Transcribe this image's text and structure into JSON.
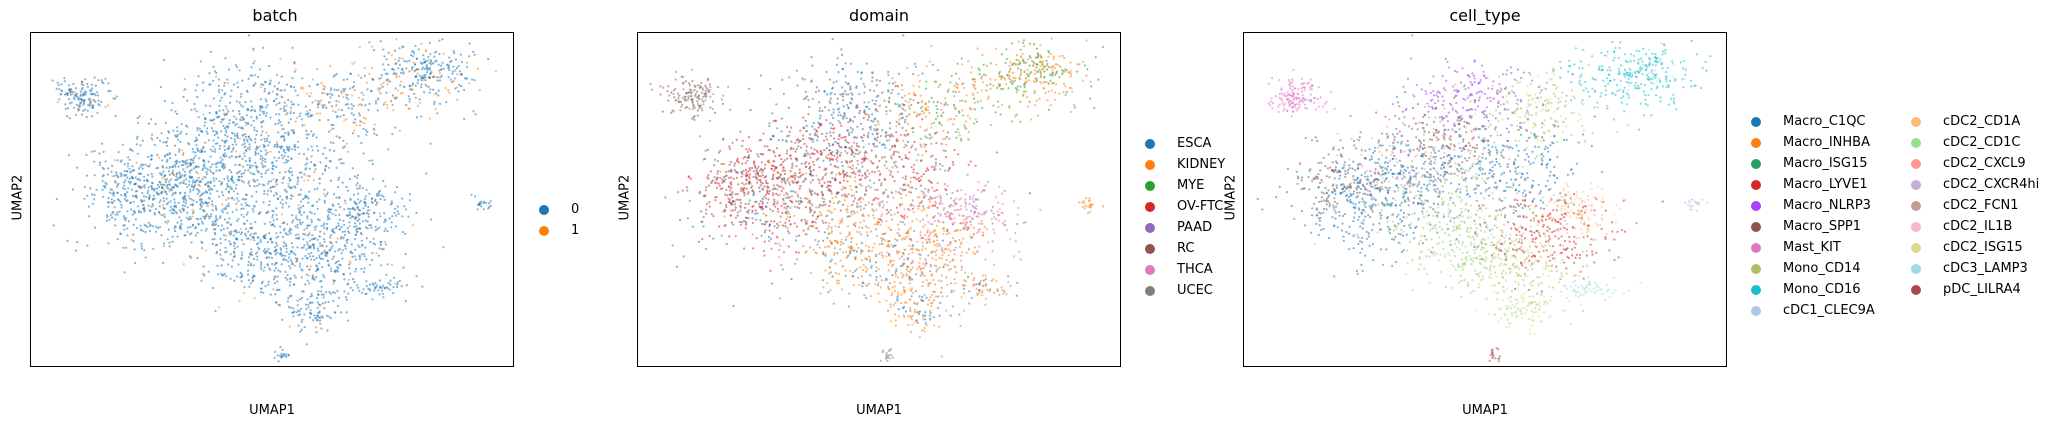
{
  "chart_data": [
    {
      "type": "scatter",
      "title": "batch",
      "xlabel": "UMAP1",
      "ylabel": "UMAP2",
      "legend_position": "right",
      "grid": false,
      "series": [
        {
          "name": "0",
          "color": "#1f77b4"
        },
        {
          "name": "1",
          "color": "#ff7f0e"
        }
      ]
    },
    {
      "type": "scatter",
      "title": "domain",
      "xlabel": "UMAP1",
      "ylabel": "UMAP2",
      "legend_position": "right",
      "grid": false,
      "series": [
        {
          "name": "ESCA",
          "color": "#1f77b4"
        },
        {
          "name": "KIDNEY",
          "color": "#ff7f0e"
        },
        {
          "name": "MYE",
          "color": "#2ca02c"
        },
        {
          "name": "OV-FTC",
          "color": "#d62728"
        },
        {
          "name": "PAAD",
          "color": "#9467bd"
        },
        {
          "name": "RC",
          "color": "#8c564b"
        },
        {
          "name": "THCA",
          "color": "#e377c2"
        },
        {
          "name": "UCEC",
          "color": "#7f7f7f"
        }
      ]
    },
    {
      "type": "scatter",
      "title": "cell_type",
      "xlabel": "UMAP1",
      "ylabel": "UMAP2",
      "legend_position": "right",
      "grid": false,
      "series": [
        {
          "name": "Macro_C1QC",
          "color": "#1f77b4"
        },
        {
          "name": "Macro_INHBA",
          "color": "#ff7f0e"
        },
        {
          "name": "Macro_ISG15",
          "color": "#279e68"
        },
        {
          "name": "Macro_LYVE1",
          "color": "#d62728"
        },
        {
          "name": "Macro_NLRP3",
          "color": "#aa40fc"
        },
        {
          "name": "Macro_SPP1",
          "color": "#8c564b"
        },
        {
          "name": "Mast_KIT",
          "color": "#e377c2"
        },
        {
          "name": "Mono_CD14",
          "color": "#b5bd61"
        },
        {
          "name": "Mono_CD16",
          "color": "#17becf"
        },
        {
          "name": "cDC1_CLEC9A",
          "color": "#aec7e8"
        },
        {
          "name": "cDC2_CD1A",
          "color": "#ffbb78"
        },
        {
          "name": "cDC2_CD1C",
          "color": "#98df8a"
        },
        {
          "name": "cDC2_CXCL9",
          "color": "#ff9896"
        },
        {
          "name": "cDC2_CXCR4hi",
          "color": "#c5b0d5"
        },
        {
          "name": "cDC2_FCN1",
          "color": "#c49c94"
        },
        {
          "name": "cDC2_IL1B",
          "color": "#f7b6d2"
        },
        {
          "name": "cDC2_ISG15",
          "color": "#dbdb8d"
        },
        {
          "name": "cDC3_LAMP3",
          "color": "#9edae5"
        },
        {
          "name": "pDC_LILRA4",
          "color": "#ad494a"
        }
      ]
    }
  ]
}
